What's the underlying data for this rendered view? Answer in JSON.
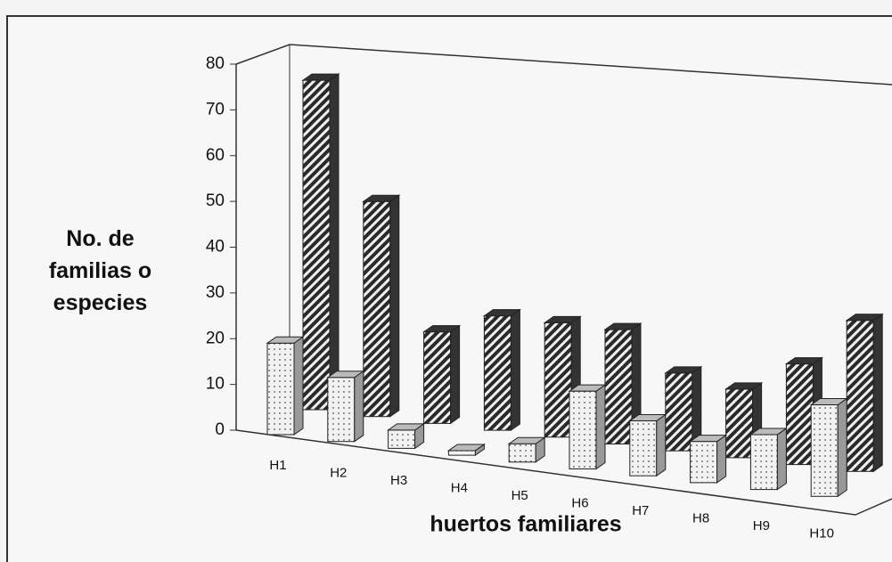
{
  "chart_data": {
    "type": "bar3d",
    "ylabel": "No. de familias o especies",
    "xlabel": "huertos familiares",
    "categories": [
      "H1",
      "H2",
      "H3",
      "H4",
      "H5",
      "H6",
      "H7",
      "H8",
      "H9",
      "H10"
    ],
    "series": [
      {
        "color": "#e8e8e8",
        "values": [
          20,
          14,
          4,
          1,
          4,
          17,
          12,
          9,
          12,
          20
        ]
      },
      {
        "color": "#333333",
        "values": [
          72,
          47,
          20,
          25,
          25,
          25,
          17,
          15,
          22,
          33
        ]
      }
    ],
    "ylim": [
      0,
      80
    ],
    "yticks": [
      0,
      10,
      20,
      30,
      40,
      50,
      60,
      70,
      80
    ]
  }
}
